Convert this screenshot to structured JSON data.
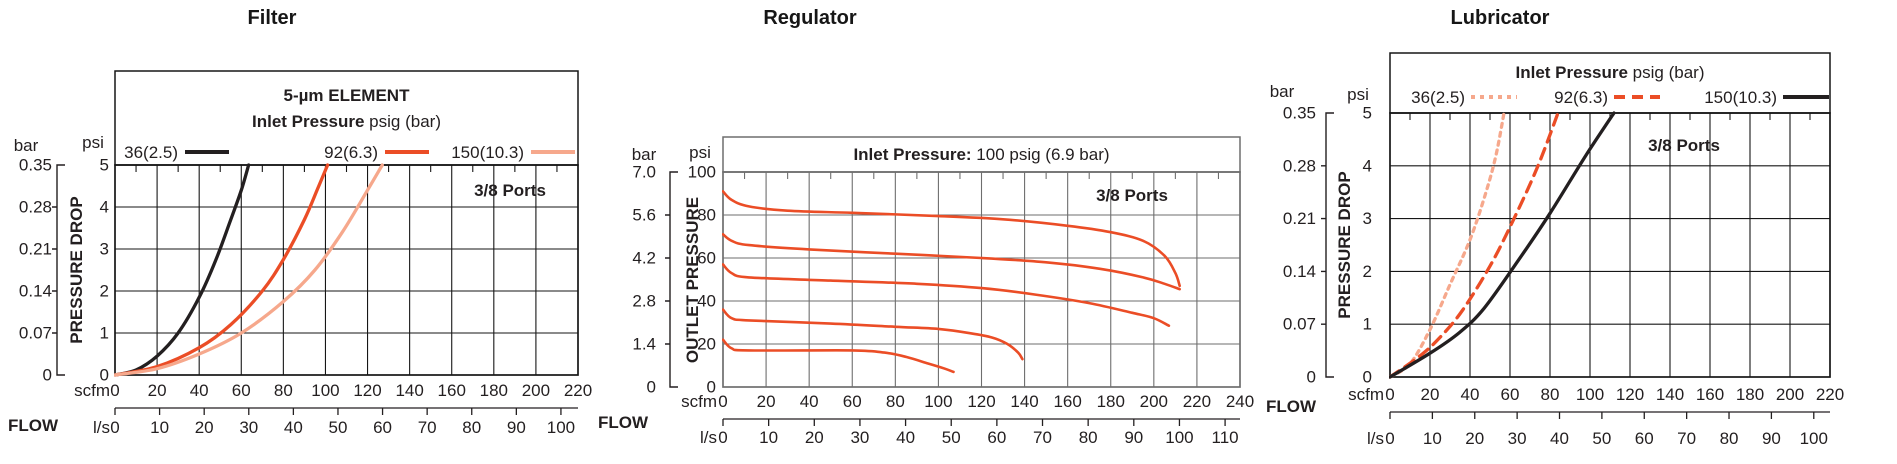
{
  "page": {
    "background": "#ffffff"
  },
  "colors": {
    "black": "#231f20",
    "orange_red": "#eb4d26",
    "salmon": "#f6a88c",
    "grid_dark": "#161616",
    "grid_gray": "#6e6e6e"
  },
  "chart_data": [
    {
      "id": "filter",
      "type": "line",
      "title": "Filter",
      "legend": {
        "rows": [
          [
            {
              "text": "5-µm ELEMENT",
              "bold": true
            }
          ],
          [
            {
              "text": "Inlet Pressure",
              "bold": true
            },
            {
              "text": " psig (bar)",
              "bold": false
            }
          ]
        ],
        "entries": [
          {
            "label": "36(2.5)",
            "color": "#231f20",
            "dash": "solid"
          },
          {
            "label": "92(6.3)",
            "color": "#eb4d26",
            "dash": "solid"
          },
          {
            "label": "150(10.3)",
            "color": "#f6a88c",
            "dash": "solid"
          }
        ]
      },
      "annotation": "3/8 Ports",
      "x_axis": {
        "label": "FLOW",
        "primary_unit": "scfm",
        "secondary_unit": "l/s",
        "primary_ticks": [
          0,
          20,
          40,
          60,
          80,
          100,
          120,
          140,
          160,
          180,
          200,
          220
        ],
        "secondary_ticks": [
          0,
          10,
          20,
          30,
          40,
          50,
          60,
          70,
          80,
          90,
          100
        ]
      },
      "y_axis": {
        "label": "PRESSURE DROP",
        "primary_unit": "psi",
        "secondary_unit": "bar",
        "primary_ticks": [
          "5",
          "4",
          "3",
          "2",
          "1",
          "0"
        ],
        "secondary_ticks": [
          "0.35",
          "0.28",
          "0.21",
          "0.14",
          "0.07",
          "0"
        ],
        "psi_max": 5
      },
      "series": [
        {
          "name": "36(2.5)",
          "color": "#231f20",
          "dash": "solid",
          "points": [
            [
              0,
              0
            ],
            [
              10,
              0.12
            ],
            [
              20,
              0.45
            ],
            [
              30,
              1.0
            ],
            [
              40,
              1.85
            ],
            [
              48,
              2.75
            ],
            [
              55,
              3.7
            ],
            [
              60,
              4.4
            ],
            [
              63.5,
              5
            ]
          ]
        },
        {
          "name": "92(6.3)",
          "color": "#eb4d26",
          "dash": "solid",
          "points": [
            [
              0,
              0
            ],
            [
              20,
              0.2
            ],
            [
              40,
              0.65
            ],
            [
              55,
              1.2
            ],
            [
              70,
              2.0
            ],
            [
              80,
              2.75
            ],
            [
              90,
              3.7
            ],
            [
              96,
              4.4
            ],
            [
              101,
              5
            ]
          ]
        },
        {
          "name": "150(10.3)",
          "color": "#f6a88c",
          "dash": "solid",
          "points": [
            [
              0,
              0
            ],
            [
              20,
              0.15
            ],
            [
              40,
              0.5
            ],
            [
              60,
              1.0
            ],
            [
              80,
              1.75
            ],
            [
              95,
              2.5
            ],
            [
              108,
              3.4
            ],
            [
              120,
              4.4
            ],
            [
              127,
              5
            ]
          ]
        }
      ]
    },
    {
      "id": "regulator",
      "type": "line",
      "title": "Regulator",
      "legend": {
        "rows": [
          [
            {
              "text": "Inlet Pressure:",
              "bold": true
            },
            {
              "text": " 100 psig (6.9 bar)",
              "bold": false
            }
          ]
        ],
        "entries": []
      },
      "annotation": "3/8 Ports",
      "x_axis": {
        "label": "FLOW",
        "primary_unit": "scfm",
        "secondary_unit": "l/s",
        "primary_ticks": [
          0,
          20,
          40,
          60,
          80,
          100,
          120,
          140,
          160,
          180,
          200,
          220,
          240
        ],
        "secondary_ticks": [
          0,
          10,
          20,
          30,
          40,
          50,
          60,
          70,
          80,
          90,
          100,
          110
        ]
      },
      "y_axis": {
        "label": "OUTLET PRESSURE",
        "primary_unit": "psi",
        "secondary_unit": "bar",
        "primary_ticks": [
          "100",
          "80",
          "60",
          "40",
          "20",
          "0"
        ],
        "secondary_ticks": [
          "7.0",
          "5.6",
          "4.2",
          "2.8",
          "1.4",
          "0"
        ],
        "psi_max": 100
      },
      "series": [
        {
          "name": "curve-1",
          "color": "#eb4d26",
          "dash": "solid",
          "points": [
            [
              0,
              91
            ],
            [
              4,
              87
            ],
            [
              12,
              84
            ],
            [
              30,
              82
            ],
            [
              60,
              81
            ],
            [
              100,
              79.5
            ],
            [
              130,
              78
            ],
            [
              160,
              75
            ],
            [
              180,
              72
            ],
            [
              195,
              68
            ],
            [
              205,
              61
            ],
            [
              210,
              53
            ],
            [
              212,
              47
            ]
          ]
        },
        {
          "name": "curve-2",
          "color": "#eb4d26",
          "dash": "solid",
          "points": [
            [
              0,
              71
            ],
            [
              4,
              68
            ],
            [
              12,
              66
            ],
            [
              40,
              64
            ],
            [
              80,
              62
            ],
            [
              120,
              60
            ],
            [
              150,
              58
            ],
            [
              175,
              55
            ],
            [
              195,
              51
            ],
            [
              205,
              48
            ],
            [
              212,
              45.5
            ]
          ]
        },
        {
          "name": "curve-3",
          "color": "#eb4d26",
          "dash": "solid",
          "points": [
            [
              0,
              57
            ],
            [
              4,
              53
            ],
            [
              12,
              51
            ],
            [
              50,
              49.5
            ],
            [
              90,
              48
            ],
            [
              120,
              46
            ],
            [
              145,
              43
            ],
            [
              170,
              39
            ],
            [
              190,
              34.5
            ],
            [
              200,
              32
            ],
            [
              207,
              28.5
            ]
          ]
        },
        {
          "name": "curve-4",
          "color": "#eb4d26",
          "dash": "solid",
          "points": [
            [
              0,
              36
            ],
            [
              4,
              32
            ],
            [
              12,
              31
            ],
            [
              50,
              29.5
            ],
            [
              80,
              28
            ],
            [
              100,
              27
            ],
            [
              115,
              25
            ],
            [
              125,
              23
            ],
            [
              132,
              20
            ],
            [
              137,
              16
            ],
            [
              139,
              13
            ]
          ]
        },
        {
          "name": "curve-5",
          "color": "#eb4d26",
          "dash": "solid",
          "points": [
            [
              0,
              22
            ],
            [
              4,
              18
            ],
            [
              12,
              17
            ],
            [
              60,
              17
            ],
            [
              75,
              16
            ],
            [
              85,
              14
            ],
            [
              95,
              11
            ],
            [
              103,
              8.5
            ],
            [
              107,
              7
            ]
          ]
        }
      ]
    },
    {
      "id": "lubricator",
      "type": "line",
      "title": "Lubricator",
      "legend": {
        "rows": [
          [
            {
              "text": "Inlet Pressure",
              "bold": true
            },
            {
              "text": " psig (bar)",
              "bold": false
            }
          ]
        ],
        "entries": [
          {
            "label": "36(2.5)",
            "color": "#f6a88c",
            "dash": "fine-dashed"
          },
          {
            "label": "92(6.3)",
            "color": "#eb4d26",
            "dash": "dashed"
          },
          {
            "label": "150(10.3)",
            "color": "#231f20",
            "dash": "solid"
          }
        ]
      },
      "annotation": "3/8 Ports",
      "x_axis": {
        "label": "FLOW",
        "primary_unit": "scfm",
        "secondary_unit": "l/s",
        "primary_ticks": [
          0,
          20,
          40,
          60,
          80,
          100,
          120,
          140,
          160,
          180,
          200,
          220
        ],
        "secondary_ticks": [
          0,
          10,
          20,
          30,
          40,
          50,
          60,
          70,
          80,
          90,
          100
        ]
      },
      "y_axis": {
        "label": "PRESSURE DROP",
        "primary_unit": "psi",
        "secondary_unit": "bar",
        "primary_ticks": [
          "5",
          "4",
          "3",
          "2",
          "1",
          "0"
        ],
        "secondary_ticks": [
          "0.35",
          "0.28",
          "0.21",
          "0.14",
          "0.07",
          "0"
        ],
        "psi_max": 5
      },
      "series": [
        {
          "name": "36(2.5)",
          "color": "#f6a88c",
          "dash": "fine-dashed",
          "points": [
            [
              0,
              0
            ],
            [
              10,
              0.25
            ],
            [
              20,
              0.9
            ],
            [
              30,
              1.75
            ],
            [
              40,
              2.6
            ],
            [
              48,
              3.5
            ],
            [
              53,
              4.2
            ],
            [
              57,
              5
            ]
          ]
        },
        {
          "name": "92(6.3)",
          "color": "#eb4d26",
          "dash": "dashed",
          "points": [
            [
              0,
              0
            ],
            [
              15,
              0.4
            ],
            [
              25,
              0.75
            ],
            [
              36,
              1.25
            ],
            [
              50,
              2.1
            ],
            [
              62,
              3.0
            ],
            [
              74,
              4.0
            ],
            [
              84,
              5
            ]
          ]
        },
        {
          "name": "150(10.3)",
          "color": "#231f20",
          "dash": "solid",
          "points": [
            [
              0,
              0
            ],
            [
              20,
              0.45
            ],
            [
              35,
              0.85
            ],
            [
              47,
              1.3
            ],
            [
              64,
              2.2
            ],
            [
              80,
              3.1
            ],
            [
              98,
              4.2
            ],
            [
              112,
              5
            ]
          ]
        }
      ]
    }
  ]
}
